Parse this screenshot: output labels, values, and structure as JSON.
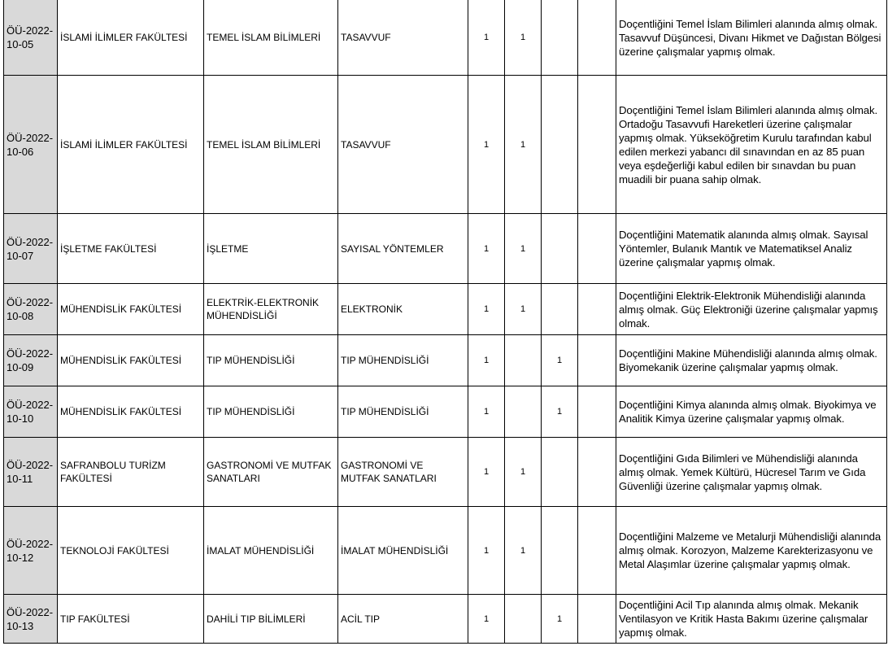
{
  "table": {
    "rows": [
      {
        "code": "ÖÜ-2022-10-05",
        "faculty": "İSLAMİ İLİMLER FAKÜLTESİ",
        "department": "TEMEL İSLAM BİLİMLERİ",
        "program": "TASAVVUF",
        "col1": "1",
        "col2": "1",
        "requirement": "Doçentliğini Temel İslam Bilimleri alanında almış olmak. Tasavvuf Düşüncesi, Divanı Hikmet ve Dağıstan Bölgesi üzerine çalışmalar yapmış olmak."
      },
      {
        "code": "ÖÜ-2022-10-06",
        "faculty": "İSLAMİ İLİMLER FAKÜLTESİ",
        "department": "TEMEL İSLAM BİLİMLERİ",
        "program": "TASAVVUF",
        "col1": "1",
        "col2": "1",
        "requirement": "Doçentliğini Temel İslam Bilimleri alanında almış olmak. Ortadoğu Tasavvufi Hareketleri üzerine çalışmalar yapmış olmak. Yükseköğretim Kurulu tarafından kabul edilen merkezi yabancı dil sınavından en az 85 puan veya eşdeğerliği kabul edilen bir sınavdan bu puan muadili bir puana sahip olmak."
      },
      {
        "code": "ÖÜ-2022-10-07",
        "faculty": "İŞLETME FAKÜLTESİ",
        "department": "İŞLETME",
        "program": "SAYISAL YÖNTEMLER",
        "col1": "1",
        "col2": "1",
        "requirement": "Doçentliğini Matematik alanında almış olmak. Sayısal Yöntemler, Bulanık Mantık ve Matematiksel Analiz üzerine çalışmalar yapmış olmak."
      },
      {
        "code": "ÖÜ-2022-10-08",
        "faculty": "MÜHENDİSLİK FAKÜLTESİ",
        "department": "ELEKTRİK-ELEKTRONİK MÜHENDİSLİĞİ",
        "program": "ELEKTRONİK",
        "col1": "1",
        "col2": "1",
        "requirement": "Doçentliğini Elektrik-Elektronik Mühendisliği alanında almış olmak. Güç Elektroniği üzerine çalışmalar yapmış olmak."
      },
      {
        "code": "ÖÜ-2022-10-09",
        "faculty": "MÜHENDİSLİK FAKÜLTESİ",
        "department": "TIP MÜHENDİSLİĞİ",
        "program": "TIP MÜHENDİSLİĞİ",
        "col1": "1",
        "col3": "1",
        "requirement": "Doçentliğini Makine Mühendisliği alanında almış olmak. Biyomekanik üzerine çalışmalar yapmış olmak."
      },
      {
        "code": "ÖÜ-2022-10-10",
        "faculty": "MÜHENDİSLİK FAKÜLTESİ",
        "department": "TIP MÜHENDİSLİĞİ",
        "program": "TIP MÜHENDİSLİĞİ",
        "col1": "1",
        "col3": "1",
        "requirement": "Doçentliğini Kimya alanında almış olmak. Biyokimya ve Analitik Kimya üzerine çalışmalar yapmış olmak."
      },
      {
        "code": "ÖÜ-2022-10-11",
        "faculty": "SAFRANBOLU TURİZM FAKÜLTESİ",
        "department": "GASTRONOMİ VE MUTFAK SANATLARI",
        "program": "GASTRONOMİ VE MUTFAK SANATLARI",
        "col1": "1",
        "col2": "1",
        "requirement": "Doçentliğini Gıda Bilimleri ve Mühendisliği alanında almış olmak. Yemek Kültürü, Hücresel Tarım ve Gıda Güvenliği üzerine çalışmalar yapmış olmak."
      },
      {
        "code": "ÖÜ-2022-10-12",
        "faculty": "TEKNOLOJİ FAKÜLTESİ",
        "department": "İMALAT MÜHENDİSLİĞİ",
        "program": "İMALAT MÜHENDİSLİĞİ",
        "col1": "1",
        "col2": "1",
        "requirement": "Doçentliğini Malzeme ve Metalurji Mühendisliği alanında almış olmak. Korozyon, Malzeme Karekterizasyonu ve Metal Alaşımlar üzerine çalışmalar yapmış olmak."
      },
      {
        "code": "ÖÜ-2022-10-13",
        "faculty": "TIP FAKÜLTESİ",
        "department": "DAHİLİ TIP BİLİMLERİ",
        "program": "ACİL TIP",
        "col1": "1",
        "col3": "1",
        "requirement": "Doçentliğini Acil Tıp alanında almış olmak. Mekanik Ventilasyon ve Kritik Hasta Bakımı üzerine çalışmalar yapmış olmak."
      }
    ]
  }
}
